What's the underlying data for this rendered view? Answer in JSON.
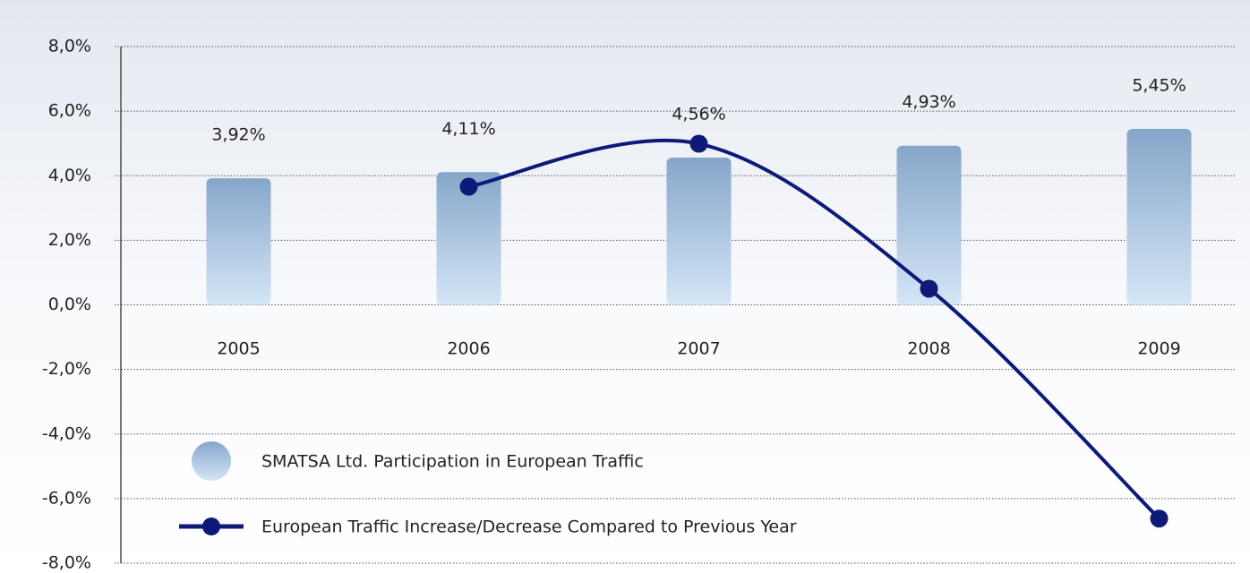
{
  "chart_data": {
    "type": "bar+line",
    "categories": [
      "2005",
      "2006",
      "2007",
      "2008",
      "2009"
    ],
    "series": [
      {
        "name": "SMATSA Ltd. Participation in European Traffic",
        "type": "bar",
        "color": "#86a6c9",
        "values": [
          3.92,
          4.11,
          4.56,
          4.93,
          5.45
        ],
        "value_labels": [
          "3,92%",
          "4,11%",
          "4,56%",
          "4,93%",
          "5,45%"
        ]
      },
      {
        "name": "European Traffic Increase/Decrease Compared to Previous Year",
        "type": "line",
        "color": "#0d1a78",
        "values": [
          null,
          3.66,
          4.99,
          0.5,
          -6.62
        ]
      }
    ],
    "ylim": [
      -8,
      8
    ],
    "yticks": [
      {
        "value": -8,
        "label": "-8,0%"
      },
      {
        "value": -6,
        "label": "-6,0%"
      },
      {
        "value": -4,
        "label": "-4,0%"
      },
      {
        "value": -2,
        "label": "-2,0%"
      },
      {
        "value": 0,
        "label": "0,0%"
      },
      {
        "value": 2,
        "label": "2,0%"
      },
      {
        "value": 4,
        "label": "4,0%"
      },
      {
        "value": 6,
        "label": "6,0%"
      },
      {
        "value": 8,
        "label": "8,0%"
      }
    ],
    "grid": true
  }
}
